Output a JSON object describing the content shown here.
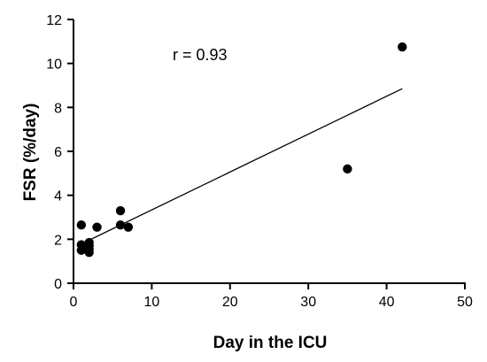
{
  "chart_data": {
    "type": "scatter",
    "title": "",
    "xlabel": "Day in the ICU",
    "ylabel": "FSR (%/day)",
    "xlim": [
      0,
      50
    ],
    "ylim": [
      0,
      12
    ],
    "x_ticks": [
      0,
      10,
      20,
      30,
      40,
      50
    ],
    "y_ticks": [
      0,
      2,
      4,
      6,
      8,
      10,
      12
    ],
    "grid": false,
    "legend": "none",
    "annotation": "r = 0.93",
    "points": [
      {
        "x": 1,
        "y": 2.65
      },
      {
        "x": 1,
        "y": 1.75
      },
      {
        "x": 1,
        "y": 1.5
      },
      {
        "x": 2,
        "y": 1.85
      },
      {
        "x": 2,
        "y": 1.7
      },
      {
        "x": 2,
        "y": 1.55
      },
      {
        "x": 2,
        "y": 1.4
      },
      {
        "x": 3,
        "y": 2.55
      },
      {
        "x": 6,
        "y": 3.3
      },
      {
        "x": 6,
        "y": 2.65
      },
      {
        "x": 7,
        "y": 2.55
      },
      {
        "x": 35,
        "y": 5.2
      },
      {
        "x": 42,
        "y": 10.75
      }
    ],
    "trendline": {
      "x": [
        0.5,
        42
      ],
      "y": [
        1.7,
        8.85
      ]
    },
    "colors": {
      "points": "#000000",
      "line": "#000000",
      "axis": "#000000"
    }
  }
}
